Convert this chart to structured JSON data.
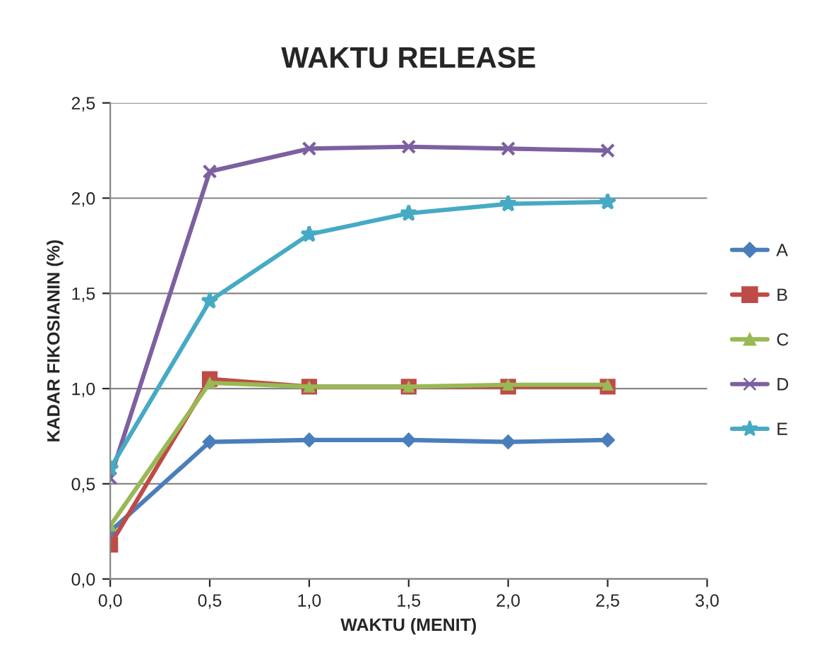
{
  "chart_data": {
    "type": "line",
    "title": "WAKTU RELEASE",
    "xlabel": "WAKTU (MENIT)",
    "ylabel": "KADAR FIKOSIANIN (%)",
    "x": [
      0,
      0.5,
      1.0,
      1.5,
      2.0,
      2.5
    ],
    "series": [
      {
        "name": "A",
        "color": "#4a7ebb",
        "marker": "diamond",
        "values": [
          0.25,
          0.72,
          0.73,
          0.73,
          0.72,
          0.73
        ]
      },
      {
        "name": "B",
        "color": "#be4b48",
        "marker": "square",
        "values": [
          0.18,
          1.05,
          1.01,
          1.01,
          1.01,
          1.01
        ]
      },
      {
        "name": "C",
        "color": "#98b954",
        "marker": "triangle",
        "values": [
          0.28,
          1.03,
          1.01,
          1.01,
          1.02,
          1.02
        ]
      },
      {
        "name": "D",
        "color": "#7d60a0",
        "marker": "cross",
        "values": [
          0.53,
          2.14,
          2.26,
          2.27,
          2.26,
          2.25
        ]
      },
      {
        "name": "E",
        "color": "#46aac5",
        "marker": "star",
        "values": [
          0.58,
          1.46,
          1.81,
          1.92,
          1.97,
          1.98
        ]
      }
    ],
    "xlim": [
      0,
      3.0
    ],
    "ylim": [
      0,
      2.5
    ],
    "xticks": [
      {
        "value": 0,
        "label": "0,0"
      },
      {
        "value": 0.5,
        "label": "0,5"
      },
      {
        "value": 1.0,
        "label": "1,0"
      },
      {
        "value": 1.5,
        "label": "1,5"
      },
      {
        "value": 2.0,
        "label": "2,0"
      },
      {
        "value": 2.5,
        "label": "2,5"
      },
      {
        "value": 3.0,
        "label": "3,0"
      }
    ],
    "yticks": [
      {
        "value": 0,
        "label": "0,0"
      },
      {
        "value": 0.5,
        "label": "0,5"
      },
      {
        "value": 1.0,
        "label": "1,0"
      },
      {
        "value": 1.5,
        "label": "1,5"
      },
      {
        "value": 2.0,
        "label": "2,0"
      },
      {
        "value": 2.5,
        "label": "2,5"
      }
    ],
    "grid": "y",
    "legend": "right",
    "line_style": "solid"
  }
}
